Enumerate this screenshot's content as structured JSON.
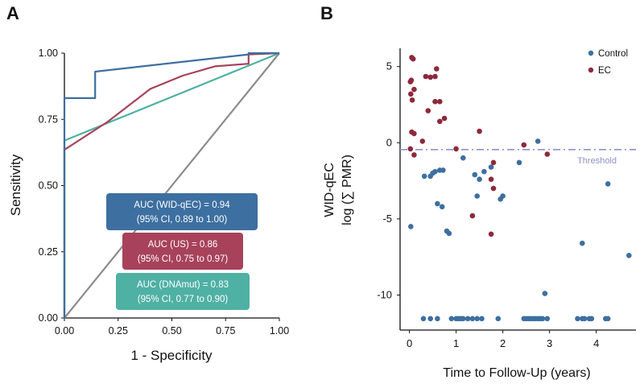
{
  "chart_data": [
    {
      "panel": "A",
      "type": "line",
      "xlabel": "1 - Specificity",
      "ylabel": "Sensitivity",
      "xlim": [
        0,
        1
      ],
      "ylim": [
        0,
        1
      ],
      "xticks": [
        "0.00",
        "0.25",
        "0.50",
        "0.75",
        "1.00"
      ],
      "yticks": [
        "0.00",
        "0.25",
        "0.50",
        "0.75",
        "1.00"
      ],
      "grid": false,
      "series": [
        {
          "name": "AUC (WID-qEC) = 0.94",
          "ci": "(95% CI, 0.89 to 1.00)",
          "color": "#3d6fa0",
          "x": [
            0,
            0,
            0,
            0.143,
            0.143,
            0.857,
            0.857,
            1.0
          ],
          "y": [
            0,
            0.83,
            0.83,
            0.83,
            0.93,
            0.995,
            1.0,
            1.0
          ]
        },
        {
          "name": "AUC (US) = 0.86",
          "ci": "(95% CI, 0.75 to 0.97)",
          "color": "#a7425a",
          "x": [
            0,
            0,
            0.2,
            0.4,
            0.55,
            0.7,
            0.857,
            0.857,
            1.0
          ],
          "y": [
            0,
            0.635,
            0.74,
            0.865,
            0.915,
            0.95,
            0.96,
            0.995,
            1.0
          ]
        },
        {
          "name": "AUC (DNAmut) = 0.83",
          "ci": "(95% CI, 0.77 to 0.90)",
          "color": "#4fb0a4",
          "x": [
            0,
            0,
            1.0
          ],
          "y": [
            0,
            0.67,
            1.0
          ]
        },
        {
          "name": "reference",
          "color": "#8c8c8c",
          "x": [
            0,
            1
          ],
          "y": [
            0,
            1
          ]
        }
      ]
    },
    {
      "panel": "B",
      "type": "scatter",
      "xlabel": "Time to Follow-Up (years)",
      "ylabel_line1": "WID-qEC",
      "ylabel_line2": "log (∑ PMR)",
      "xlim": [
        -0.2,
        4.85
      ],
      "ylim": [
        -12.3,
        6.2
      ],
      "xticks": [
        0,
        1,
        2,
        3,
        4
      ],
      "yticks": [
        5,
        0,
        -5,
        -10
      ],
      "legend_position": "top-right",
      "threshold": {
        "label": "Threshold",
        "y": -0.45,
        "color": "#8d92c8"
      },
      "series": [
        {
          "name": "Control",
          "color": "#3d6fa0",
          "points": [
            [
              0.03,
              -5.5
            ],
            [
              0.32,
              -2.2
            ],
            [
              0.45,
              -2.2
            ],
            [
              0.5,
              -2.0
            ],
            [
              0.55,
              -1.9
            ],
            [
              0.6,
              -4.0
            ],
            [
              0.65,
              -1.8
            ],
            [
              0.72,
              -1.8
            ],
            [
              0.7,
              -4.2
            ],
            [
              0.8,
              -5.8
            ],
            [
              0.85,
              -5.95
            ],
            [
              1.15,
              -1.0
            ],
            [
              1.4,
              -2.1
            ],
            [
              1.45,
              -3.5
            ],
            [
              1.5,
              -2.4
            ],
            [
              1.6,
              -1.9
            ],
            [
              1.75,
              -1.6
            ],
            [
              1.95,
              -3.7
            ],
            [
              2.0,
              -3.5
            ],
            [
              2.35,
              -1.3
            ],
            [
              2.75,
              0.1
            ],
            [
              2.9,
              -9.9
            ],
            [
              3.7,
              -6.6
            ],
            [
              4.25,
              -2.7
            ],
            [
              4.7,
              -7.4
            ],
            [
              0.3,
              -11.55
            ],
            [
              0.45,
              -11.55
            ],
            [
              0.6,
              -11.55
            ],
            [
              0.9,
              -11.55
            ],
            [
              1.0,
              -11.55
            ],
            [
              1.05,
              -11.55
            ],
            [
              1.1,
              -11.55
            ],
            [
              1.15,
              -11.55
            ],
            [
              1.25,
              -11.55
            ],
            [
              1.35,
              -11.55
            ],
            [
              1.45,
              -11.55
            ],
            [
              1.55,
              -11.55
            ],
            [
              1.9,
              -11.55
            ],
            [
              2.45,
              -11.55
            ],
            [
              2.5,
              -11.55
            ],
            [
              2.55,
              -11.55
            ],
            [
              2.6,
              -11.55
            ],
            [
              2.65,
              -11.55
            ],
            [
              2.7,
              -11.55
            ],
            [
              2.75,
              -11.55
            ],
            [
              2.8,
              -11.55
            ],
            [
              2.85,
              -11.55
            ],
            [
              2.95,
              -11.55
            ],
            [
              3.6,
              -11.55
            ],
            [
              3.7,
              -11.55
            ],
            [
              3.75,
              -11.55
            ],
            [
              3.85,
              -11.55
            ],
            [
              3.9,
              -11.55
            ],
            [
              4.2,
              -11.55
            ],
            [
              4.25,
              -11.55
            ]
          ]
        },
        {
          "name": "EC",
          "color": "#8c2a3c",
          "points": [
            [
              0.02,
              4.0
            ],
            [
              0.04,
              4.1
            ],
            [
              0.05,
              5.6
            ],
            [
              0.08,
              5.5
            ],
            [
              0.03,
              3.2
            ],
            [
              0.06,
              2.8
            ],
            [
              0.1,
              3.5
            ],
            [
              0.05,
              0.7
            ],
            [
              0.1,
              0.6
            ],
            [
              0.02,
              -0.4
            ],
            [
              0.1,
              -0.8
            ],
            [
              0.35,
              4.35
            ],
            [
              0.45,
              4.3
            ],
            [
              0.55,
              4.35
            ],
            [
              0.58,
              4.85
            ],
            [
              0.4,
              2.1
            ],
            [
              0.55,
              2.7
            ],
            [
              0.65,
              2.7
            ],
            [
              0.65,
              1.4
            ],
            [
              0.75,
              1.6
            ],
            [
              0.28,
              0.1
            ],
            [
              1.0,
              -0.4
            ],
            [
              1.5,
              0.75
            ],
            [
              1.35,
              -4.8
            ],
            [
              1.75,
              -6.0
            ],
            [
              1.75,
              -2.4
            ],
            [
              1.8,
              -3.0
            ],
            [
              1.8,
              -1.3
            ],
            [
              2.45,
              -0.15
            ],
            [
              2.95,
              -0.75
            ]
          ]
        }
      ]
    }
  ],
  "labels": {
    "panel_a": "A",
    "panel_b": "B",
    "box_wid_line1": "AUC (WID-qEC) = 0.94",
    "box_wid_line2": "(95% CI, 0.89 to 1.00)",
    "box_us_line1": "AUC (US) = 0.86",
    "box_us_line2": "(95% CI, 0.75 to 0.97)",
    "box_dna_line1": "AUC (DNAmut) = 0.83",
    "box_dna_line2": "(95% CI, 0.77 to 0.90)",
    "legend_control": "Control",
    "legend_ec": "EC"
  },
  "colors": {
    "wid": "#3d6fa0",
    "us": "#a7425a",
    "dna": "#4fb0a4",
    "control": "#3d6fa0",
    "ec": "#8c2a3c",
    "threshold": "#8d92c8"
  }
}
